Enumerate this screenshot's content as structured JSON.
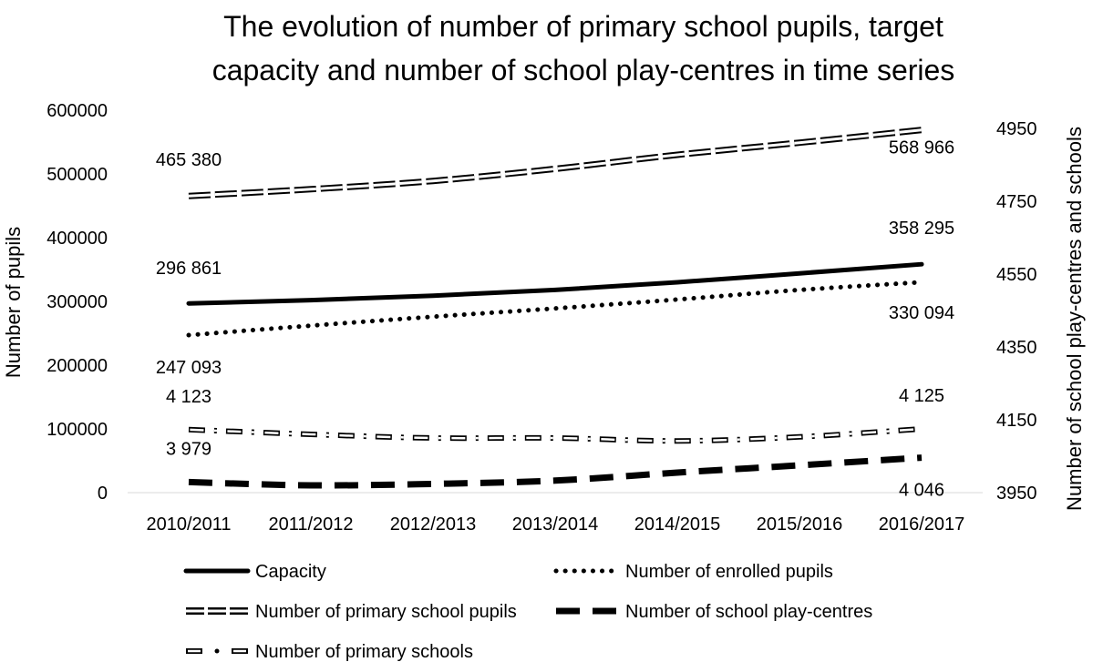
{
  "chart_data": {
    "type": "line",
    "title_lines": [
      "The evolution of number of primary school pupils, target",
      "capacity and number of school play-centres in time series"
    ],
    "categories": [
      "2010/2011",
      "2011/2012",
      "2012/2013",
      "2013/2014",
      "2014/2015",
      "2015/2016",
      "2016/2017"
    ],
    "ylabel": "Number of pupils",
    "y2label": "Number of school play-centres and schools",
    "ylim": [
      0,
      600000
    ],
    "yticks": [
      "0",
      "100000",
      "200000",
      "300000",
      "400000",
      "500000",
      "600000"
    ],
    "y2lim": [
      3950,
      5000
    ],
    "y2ticks": [
      "3950",
      "4150",
      "4350",
      "4550",
      "4750",
      "4950"
    ],
    "grid": false,
    "legend_position": "bottom",
    "series": [
      {
        "name": "Capacity",
        "axis": "left",
        "style": "solid",
        "values": [
          296861,
          302000,
          309000,
          318000,
          330000,
          344000,
          358295
        ],
        "labels": [
          {
            "index": 0,
            "text": "296 861"
          },
          {
            "index": 6,
            "text": "358 295"
          }
        ]
      },
      {
        "name": "Number of enrolled pupils",
        "axis": "left",
        "style": "dotted",
        "values": [
          247093,
          262000,
          276000,
          289000,
          303000,
          318000,
          330094
        ],
        "labels": [
          {
            "index": 0,
            "text": "247 093"
          },
          {
            "index": 6,
            "text": "330 094"
          }
        ]
      },
      {
        "name": "Number of primary school pupils",
        "axis": "left",
        "style": "double",
        "values": [
          465380,
          476000,
          489000,
          508000,
          530000,
          549000,
          568966
        ],
        "labels": [
          {
            "index": 0,
            "text": "465 380"
          },
          {
            "index": 6,
            "text": "568 966"
          }
        ]
      },
      {
        "name": "Number of school play-centres",
        "axis": "right",
        "style": "dashed",
        "values": [
          3979,
          3970,
          3974,
          3983,
          4005,
          4025,
          4046
        ],
        "labels": [
          {
            "index": 0,
            "text": "3 979"
          },
          {
            "index": 6,
            "text": "4 046"
          }
        ]
      },
      {
        "name": "Number of primary schools",
        "axis": "right",
        "style": "dashdot-hollow",
        "values": [
          4123,
          4110,
          4100,
          4100,
          4092,
          4103,
          4125
        ],
        "labels": [
          {
            "index": 0,
            "text": "4 123"
          },
          {
            "index": 6,
            "text": "4 125"
          }
        ]
      }
    ],
    "legend_order": [
      "Capacity",
      "Number of enrolled pupils",
      "Number of primary school pupils",
      "Number of school play-centres",
      "Number of primary schools"
    ]
  }
}
